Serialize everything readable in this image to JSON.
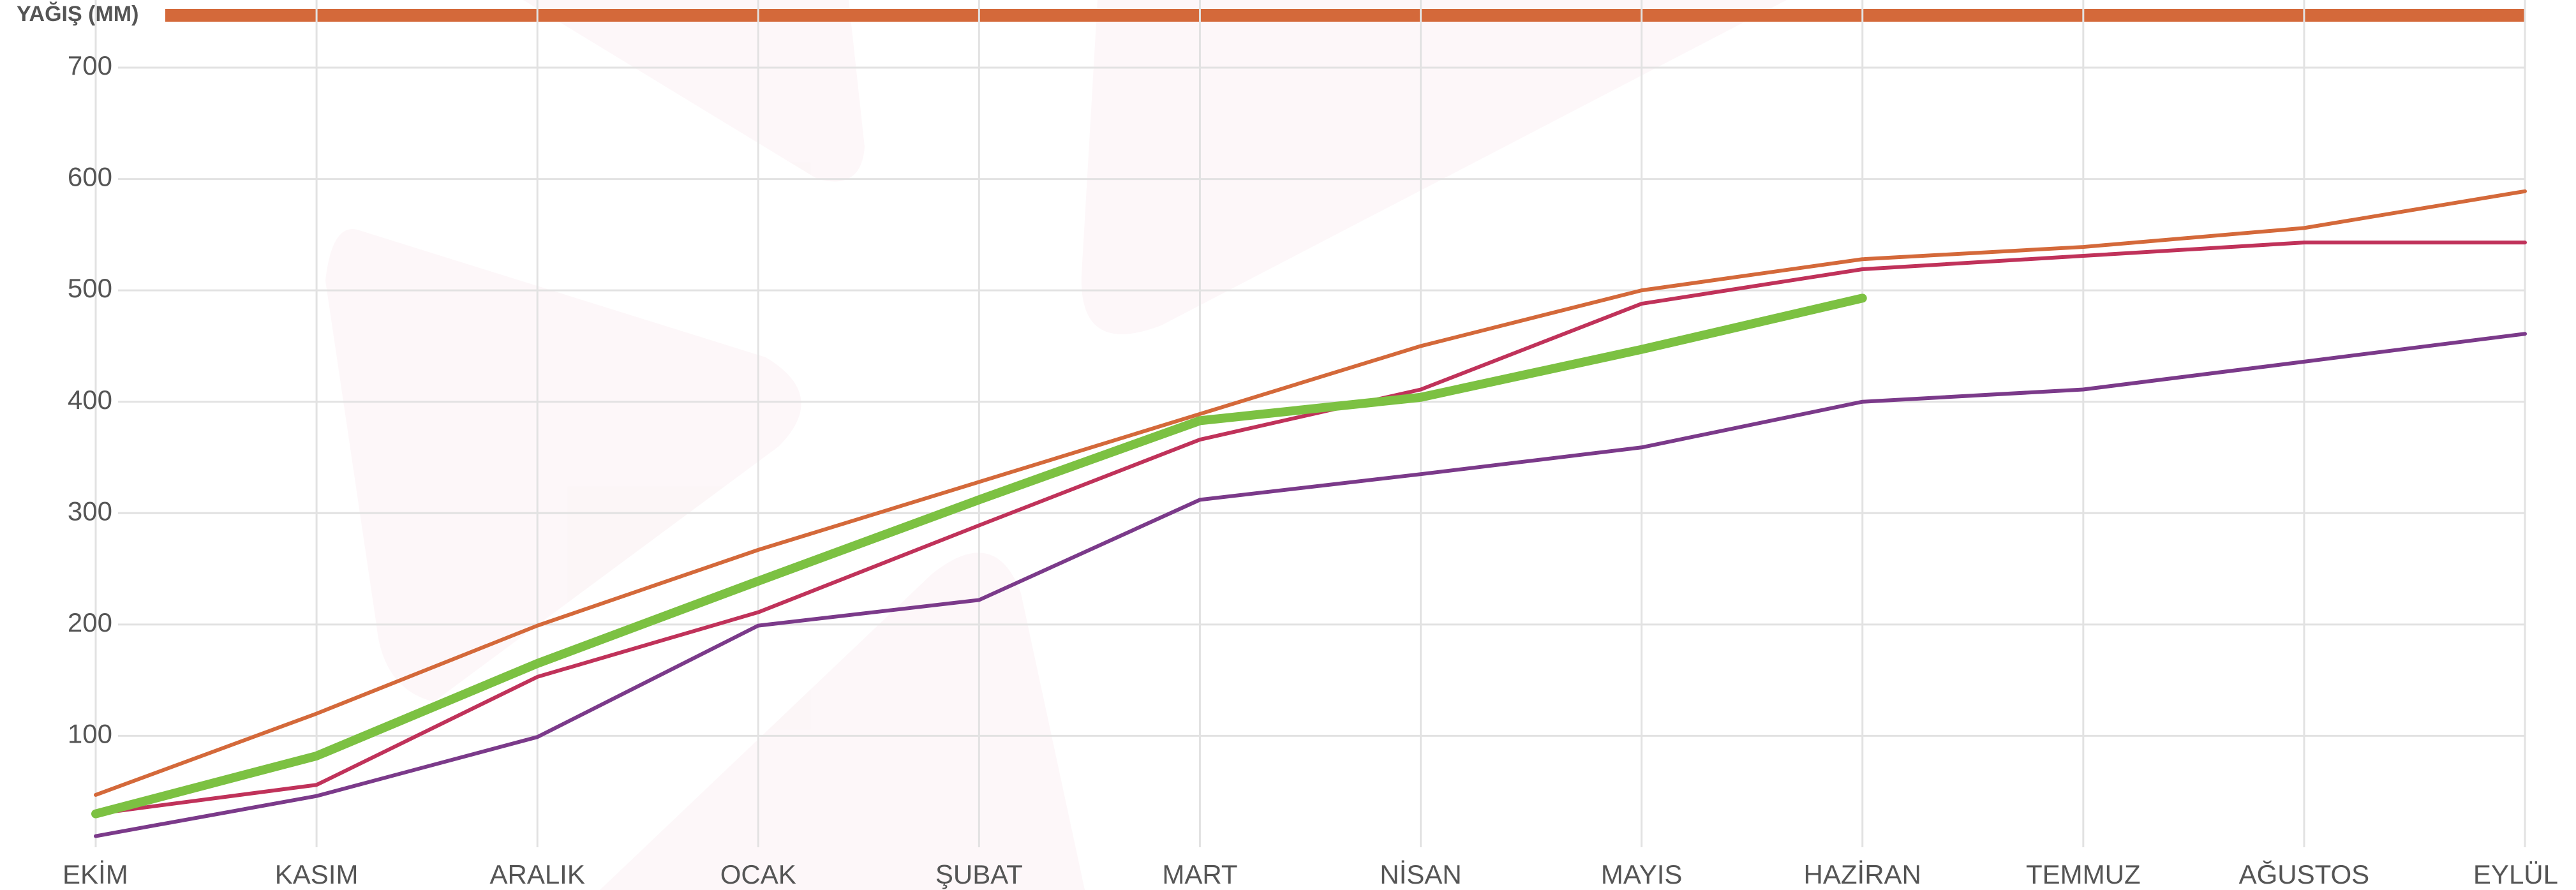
{
  "chart_data": {
    "type": "line",
    "title": "YAĞIŞ (MM)",
    "title_bar_color": "#d4693a",
    "categories": [
      "EKİM",
      "KASIM",
      "ARALIK",
      "OCAK",
      "ŞUBAT",
      "MART",
      "NİSAN",
      "MAYIS",
      "HAZİRAN",
      "TEMMUZ",
      "AĞUSTOS",
      "EYLÜL"
    ],
    "series": [
      {
        "color": "#d4693a",
        "values": [
          47,
          120,
          199,
          267,
          328,
          389,
          450,
          500,
          528,
          539,
          556,
          589
        ]
      },
      {
        "color": "#c0325a",
        "values": [
          30,
          56,
          153,
          211,
          289,
          366,
          411,
          488,
          519,
          531,
          543,
          543
        ]
      },
      {
        "color": "#7b3a8a",
        "values": [
          10,
          46,
          99,
          199,
          222,
          312,
          335,
          359,
          400,
          411,
          436,
          461
        ]
      },
      {
        "color": "#7cc142",
        "values": [
          30,
          82,
          165,
          239,
          312,
          383,
          404,
          447,
          493,
          null,
          null,
          null
        ]
      }
    ],
    "ylim": [
      0,
      700
    ],
    "yticks": [
      100,
      200,
      300,
      400,
      500,
      600,
      700
    ],
    "grid": true
  }
}
